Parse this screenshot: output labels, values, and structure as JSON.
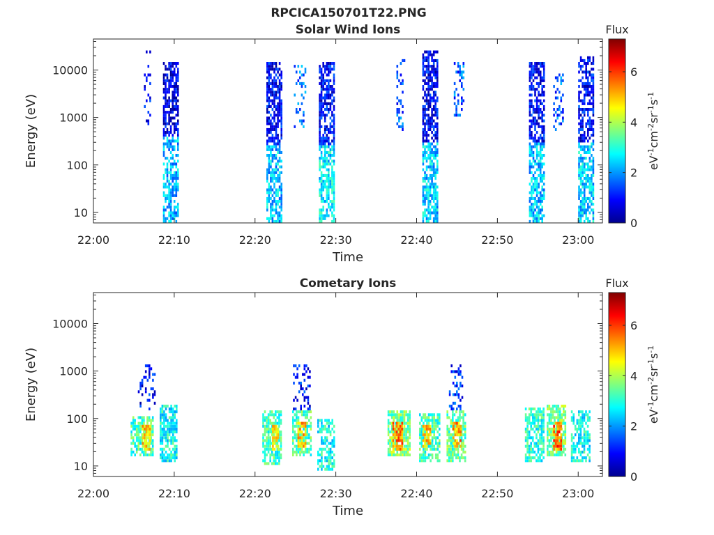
{
  "figure": {
    "title": "RPCICA150701T22.PNG"
  },
  "chart_data": [
    {
      "type": "heatmap",
      "title": "Solar Wind Ions",
      "xlabel": "Time",
      "ylabel": "Energy (eV)",
      "x_ticks": [
        "22:00",
        "22:10",
        "22:20",
        "22:30",
        "22:40",
        "22:50",
        "23:00"
      ],
      "x_range_min": [
        0,
        63
      ],
      "y_scale": "log",
      "y_ticks": [
        10,
        100,
        1000,
        10000
      ],
      "y_tick_labels": [
        "10",
        "100",
        "1000",
        "10000"
      ],
      "ylim": [
        6,
        45000
      ],
      "colorbar": {
        "label": "Flux",
        "unit_label": "eV-1cm-2sr-1s-1",
        "ticks": [
          0,
          2,
          4,
          6
        ],
        "range": [
          0,
          7.3
        ]
      },
      "regions": [
        {
          "t": 6.6,
          "span": 0.7,
          "emin": 700,
          "emax": 25000,
          "level": 0.9,
          "density": 0.25
        },
        {
          "t": 9.5,
          "span": 1.8,
          "emin": 400,
          "emax": 15000,
          "level": 0.7,
          "density": 0.7
        },
        {
          "t": 9.5,
          "span": 1.8,
          "emin": 6,
          "emax": 400,
          "level": 2.2,
          "density": 0.6
        },
        {
          "t": 22.3,
          "span": 1.8,
          "emin": 250,
          "emax": 15000,
          "level": 0.9,
          "density": 0.7
        },
        {
          "t": 22.3,
          "span": 1.8,
          "emin": 6,
          "emax": 250,
          "level": 2.3,
          "density": 0.7
        },
        {
          "t": 25.5,
          "span": 1.4,
          "emin": 600,
          "emax": 12000,
          "level": 1.8,
          "density": 0.25
        },
        {
          "t": 28.8,
          "span": 1.8,
          "emin": 250,
          "emax": 15000,
          "level": 0.9,
          "density": 0.7
        },
        {
          "t": 28.8,
          "span": 1.8,
          "emin": 6,
          "emax": 250,
          "level": 2.6,
          "density": 0.7
        },
        {
          "t": 38.0,
          "span": 1.0,
          "emin": 500,
          "emax": 18000,
          "level": 1.4,
          "density": 0.3
        },
        {
          "t": 41.6,
          "span": 1.8,
          "emin": 300,
          "emax": 25000,
          "level": 0.8,
          "density": 0.7
        },
        {
          "t": 41.6,
          "span": 1.8,
          "emin": 6,
          "emax": 300,
          "level": 2.4,
          "density": 0.7
        },
        {
          "t": 45.2,
          "span": 1.2,
          "emin": 1000,
          "emax": 15000,
          "level": 1.6,
          "density": 0.35
        },
        {
          "t": 54.8,
          "span": 1.8,
          "emin": 300,
          "emax": 15000,
          "level": 0.9,
          "density": 0.6
        },
        {
          "t": 54.8,
          "span": 1.8,
          "emin": 6,
          "emax": 300,
          "level": 2.3,
          "density": 0.7
        },
        {
          "t": 57.5,
          "span": 1.2,
          "emin": 500,
          "emax": 8000,
          "level": 1.5,
          "density": 0.3
        },
        {
          "t": 60.9,
          "span": 1.8,
          "emin": 300,
          "emax": 20000,
          "level": 0.9,
          "density": 0.6
        },
        {
          "t": 60.9,
          "span": 1.8,
          "emin": 6,
          "emax": 300,
          "level": 2.4,
          "density": 0.7
        }
      ]
    },
    {
      "type": "heatmap",
      "title": "Cometary Ions",
      "xlabel": "Time",
      "ylabel": "Energy (eV)",
      "x_ticks": [
        "22:00",
        "22:10",
        "22:20",
        "22:30",
        "22:40",
        "22:50",
        "23:00"
      ],
      "x_range_min": [
        0,
        63
      ],
      "y_scale": "log",
      "y_ticks": [
        10,
        100,
        1000,
        10000
      ],
      "y_tick_labels": [
        "10",
        "100",
        "1000",
        "10000"
      ],
      "ylim": [
        6,
        45000
      ],
      "colorbar": {
        "label": "Flux",
        "unit_label": "eV-1cm-2sr-1s-1",
        "ticks": [
          0,
          2,
          4,
          6
        ],
        "range": [
          0,
          7.3
        ]
      },
      "regions": [
        {
          "t": 6.0,
          "span": 2.8,
          "emin": 15,
          "emax": 120,
          "level": 3.2,
          "density": 0.7
        },
        {
          "t": 6.5,
          "span": 1.0,
          "emin": 20,
          "emax": 70,
          "level": 4.8,
          "density": 0.8
        },
        {
          "t": 6.5,
          "span": 2.0,
          "emin": 150,
          "emax": 1300,
          "level": 0.9,
          "density": 0.25
        },
        {
          "t": 9.2,
          "span": 2.0,
          "emin": 12,
          "emax": 200,
          "level": 2.8,
          "density": 0.7
        },
        {
          "t": 22.0,
          "span": 2.2,
          "emin": 10,
          "emax": 150,
          "level": 3.2,
          "density": 0.7
        },
        {
          "t": 22.5,
          "span": 0.8,
          "emin": 20,
          "emax": 90,
          "level": 4.6,
          "density": 0.7
        },
        {
          "t": 25.7,
          "span": 2.2,
          "emin": 15,
          "emax": 150,
          "level": 3.3,
          "density": 0.7
        },
        {
          "t": 25.7,
          "span": 0.9,
          "emin": 25,
          "emax": 80,
          "level": 5.0,
          "density": 0.8
        },
        {
          "t": 25.7,
          "span": 2.0,
          "emin": 150,
          "emax": 1300,
          "level": 1.0,
          "density": 0.3
        },
        {
          "t": 28.7,
          "span": 2.0,
          "emin": 8,
          "emax": 100,
          "level": 2.8,
          "density": 0.6
        },
        {
          "t": 37.8,
          "span": 2.8,
          "emin": 15,
          "emax": 150,
          "level": 3.6,
          "density": 0.8
        },
        {
          "t": 37.6,
          "span": 1.2,
          "emin": 20,
          "emax": 80,
          "level": 5.4,
          "density": 0.8
        },
        {
          "t": 41.6,
          "span": 2.6,
          "emin": 12,
          "emax": 130,
          "level": 3.2,
          "density": 0.7
        },
        {
          "t": 41.2,
          "span": 1.0,
          "emin": 25,
          "emax": 70,
          "level": 5.0,
          "density": 0.7
        },
        {
          "t": 44.8,
          "span": 2.2,
          "emin": 12,
          "emax": 150,
          "level": 3.4,
          "density": 0.7
        },
        {
          "t": 44.9,
          "span": 0.9,
          "emin": 25,
          "emax": 80,
          "level": 5.3,
          "density": 0.8
        },
        {
          "t": 44.8,
          "span": 1.6,
          "emin": 150,
          "emax": 1300,
          "level": 1.2,
          "density": 0.3
        },
        {
          "t": 54.6,
          "span": 2.4,
          "emin": 12,
          "emax": 180,
          "level": 3.0,
          "density": 0.7
        },
        {
          "t": 57.2,
          "span": 2.2,
          "emin": 15,
          "emax": 200,
          "level": 3.6,
          "density": 0.8
        },
        {
          "t": 57.4,
          "span": 1.0,
          "emin": 20,
          "emax": 80,
          "level": 5.6,
          "density": 0.8
        },
        {
          "t": 60.3,
          "span": 2.4,
          "emin": 12,
          "emax": 150,
          "level": 2.8,
          "density": 0.6
        }
      ]
    }
  ]
}
